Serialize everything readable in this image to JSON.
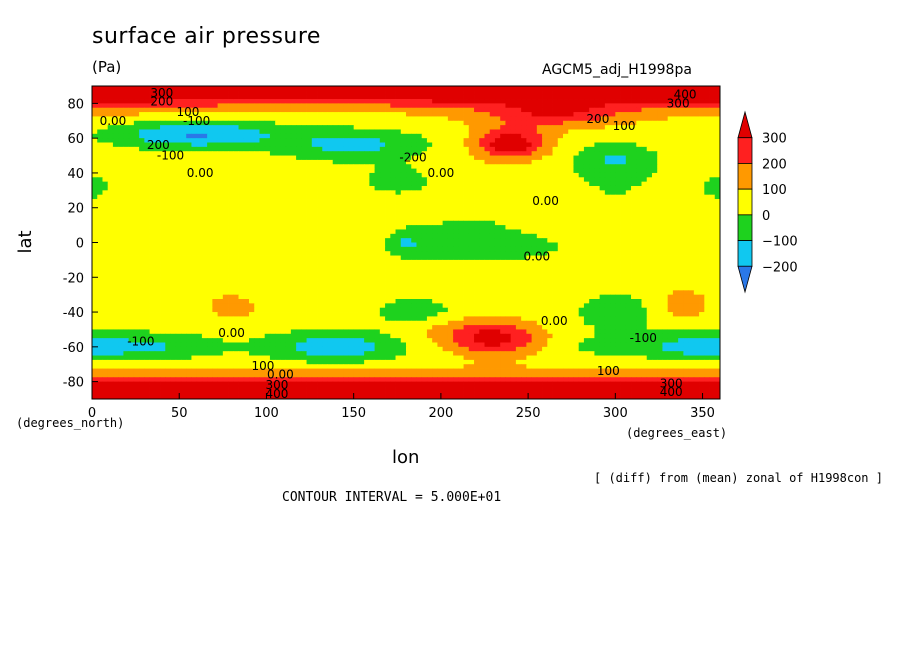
{
  "chart_data": {
    "type": "heatmap",
    "title": "surface air pressure",
    "units": "(Pa)",
    "run_id": "AGCM5_adj_H1998pa",
    "xlabel": "lon",
    "ylabel": "lat",
    "x_units": "(degrees_east)",
    "y_units": "(degrees_north)",
    "footnote": "[ (diff) from (mean) zonal of H1998con ]",
    "contour_interval": "CONTOUR INTERVAL = 5.000E+01",
    "xlim": [
      0,
      360
    ],
    "ylim": [
      -90,
      90
    ],
    "x_ticks": [
      0,
      50,
      100,
      150,
      200,
      250,
      300,
      350
    ],
    "y_ticks": [
      80,
      60,
      40,
      20,
      0,
      -20,
      -40,
      -60,
      -80
    ],
    "colorbar": {
      "levels": [
        -200,
        -100,
        0,
        100,
        200,
        300
      ],
      "labels": [
        "300",
        "200",
        "100",
        "0",
        "−100",
        "−200"
      ],
      "colors": [
        "#2a78e8",
        "#10c8f0",
        "#1ed21e",
        "#ffff00",
        "#ff9900",
        "#ff2020",
        "#e00000"
      ]
    },
    "contour_labels": [
      {
        "text": "300",
        "lon": 40,
        "lat": 86
      },
      {
        "text": "200",
        "lon": 40,
        "lat": 81
      },
      {
        "text": "100",
        "lon": 55,
        "lat": 75
      },
      {
        "text": "0.00",
        "lon": 12,
        "lat": 70
      },
      {
        "text": "-100",
        "lon": 60,
        "lat": 70
      },
      {
        "text": "200",
        "lon": 38,
        "lat": 56
      },
      {
        "text": "-100",
        "lon": 45,
        "lat": 50
      },
      {
        "text": "0.00",
        "lon": 62,
        "lat": 40
      },
      {
        "text": "-200",
        "lon": 184,
        "lat": 49
      },
      {
        "text": "0.00",
        "lon": 200,
        "lat": 40
      },
      {
        "text": "200",
        "lon": 290,
        "lat": 71
      },
      {
        "text": "100",
        "lon": 305,
        "lat": 67
      },
      {
        "text": "400",
        "lon": 340,
        "lat": 85
      },
      {
        "text": "300",
        "lon": 336,
        "lat": 80
      },
      {
        "text": "0.00",
        "lon": 260,
        "lat": 24
      },
      {
        "text": "0.00",
        "lon": 255,
        "lat": -8
      },
      {
        "text": "0.00",
        "lon": 80,
        "lat": -52
      },
      {
        "text": "-100",
        "lon": 28,
        "lat": -57
      },
      {
        "text": "0.00",
        "lon": 265,
        "lat": -45
      },
      {
        "text": "-100",
        "lon": 316,
        "lat": -55
      },
      {
        "text": "100",
        "lon": 98,
        "lat": -71
      },
      {
        "text": "100",
        "lon": 296,
        "lat": -74
      },
      {
        "text": "0.00",
        "lon": 108,
        "lat": -76
      },
      {
        "text": "300",
        "lon": 106,
        "lat": -82
      },
      {
        "text": "400",
        "lon": 106,
        "lat": -87
      },
      {
        "text": "300",
        "lon": 332,
        "lat": -81
      },
      {
        "text": "400",
        "lon": 332,
        "lat": -86
      }
    ]
  }
}
